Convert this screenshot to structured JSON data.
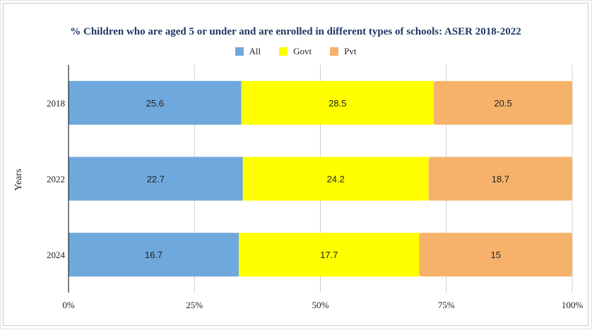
{
  "chart_data": {
    "type": "bar",
    "orientation": "horizontal",
    "stacked": "percent",
    "title": "% Children who are aged 5 or under and are enrolled in different types of schools: ASER 2018-2022",
    "xlabel": "",
    "ylabel": "Years",
    "categories": [
      "2018",
      "2022",
      "2024"
    ],
    "series": [
      {
        "name": "All",
        "values": [
          25.6,
          22.7,
          16.7
        ],
        "color": "#6fa8dc"
      },
      {
        "name": "Govt",
        "values": [
          28.5,
          24.2,
          17.7
        ],
        "color": "#ffff00"
      },
      {
        "name": "Pvt",
        "values": [
          20.5,
          18.7,
          15
        ],
        "color": "#f6b26b"
      }
    ],
    "xlim": [
      0,
      100
    ],
    "xticks": [
      "0%",
      "25%",
      "50%",
      "75%",
      "100%"
    ],
    "grid": true,
    "legend_position": "top"
  },
  "colors": {
    "title": "#1f3864",
    "grid": "#cccccc",
    "axis": "#000000"
  }
}
